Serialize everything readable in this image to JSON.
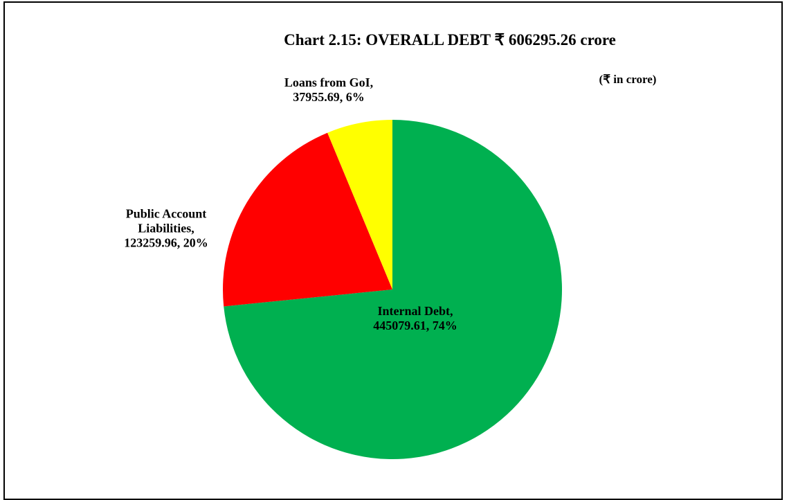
{
  "chart_data": {
    "type": "pie",
    "title": "Chart 2.15: OVERALL DEBT ₹ 606295.26 crore",
    "subtitle": "(₹ in crore)",
    "categories": [
      "Internal Debt,",
      "Public Account Liabilities,",
      "Loans from GoI,"
    ],
    "values": [
      445079.61,
      123259.96,
      37955.69
    ],
    "value_labels": [
      "445079.61, 74%",
      "123259.96, 20%",
      "37955.69, 6%"
    ],
    "colors": [
      "#00b050",
      "#ff0000",
      "#ffff00"
    ]
  }
}
